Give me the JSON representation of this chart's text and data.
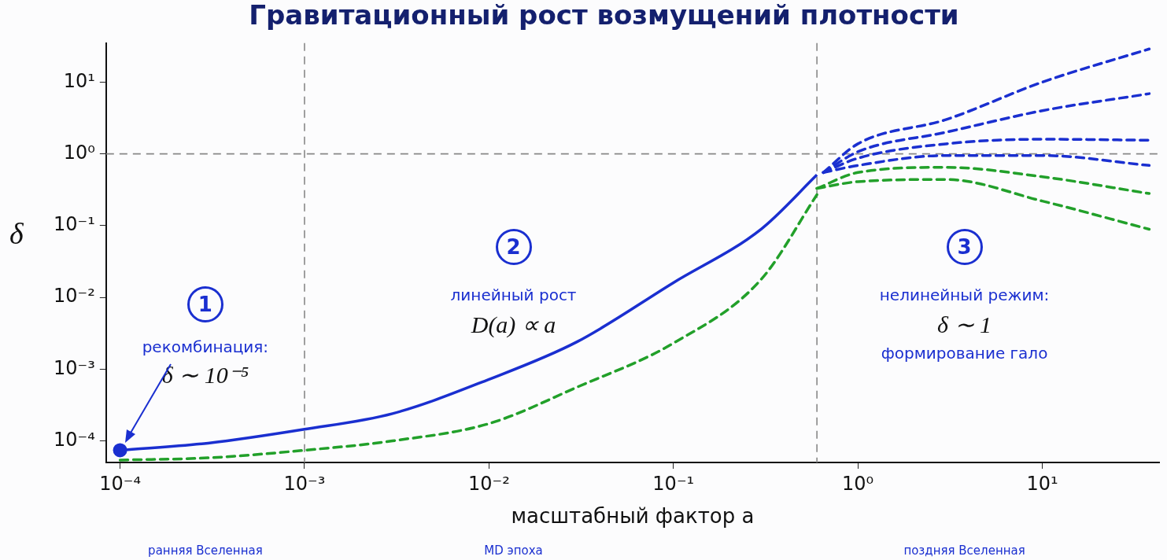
{
  "chart_data": {
    "type": "line",
    "title": "Гравитационный рост возмущений плотности",
    "xlabel": "масштабный фактор a",
    "ylabel": "δ",
    "log": "xy",
    "grid": false,
    "legend": false,
    "marker": "none",
    "xlim": [
      8.4e-05,
      43
    ],
    "ylim": [
      5e-05,
      35
    ],
    "xticks": [
      {
        "value": 0.0001,
        "label": "10⁻⁴"
      },
      {
        "value": 0.001,
        "label": "10⁻³"
      },
      {
        "value": 0.01,
        "label": "10⁻²"
      },
      {
        "value": 0.1,
        "label": "10⁻¹"
      },
      {
        "value": 1,
        "label": "10⁰"
      },
      {
        "value": 10,
        "label": "10¹"
      }
    ],
    "yticks": [
      {
        "value": 0.0001,
        "label": "10⁻⁴"
      },
      {
        "value": 0.001,
        "label": "10⁻³"
      },
      {
        "value": 0.01,
        "label": "10⁻²"
      },
      {
        "value": 0.1,
        "label": "10⁻¹"
      },
      {
        "value": 1,
        "label": "10⁰"
      },
      {
        "value": 10,
        "label": "10¹"
      }
    ],
    "series": [
      {
        "color": "#1a2fd0",
        "line_style": "solid",
        "x": [
          0.0001,
          0.0003,
          0.001,
          0.003,
          0.01,
          0.03,
          0.1,
          0.3,
          0.6
        ],
        "values": [
          7.4e-05,
          9.3e-05,
          0.000145,
          0.00024,
          0.00072,
          0.0024,
          0.016,
          0.09,
          0.51
        ]
      },
      {
        "color": "#22a02a",
        "line_style": "dashed",
        "x": [
          0.0001,
          0.0003,
          0.001,
          0.003,
          0.01,
          0.03,
          0.1,
          0.3,
          0.6
        ],
        "values": [
          5.4e-05,
          5.8e-05,
          7.4e-05,
          0.0001,
          0.000174,
          0.00056,
          0.0023,
          0.018,
          0.27
        ]
      },
      {
        "color": "#1a2fd0",
        "line_style": "dashed",
        "x": [
          0.65,
          1,
          3,
          10,
          38
        ],
        "values": [
          0.55,
          1.38,
          3,
          10,
          29
        ]
      },
      {
        "color": "#1a2fd0",
        "line_style": "dashed",
        "x": [
          0.65,
          1,
          3,
          10,
          38
        ],
        "values": [
          0.55,
          1.07,
          2,
          4,
          6.9
        ]
      },
      {
        "color": "#1a2fd0",
        "line_style": "dashed",
        "x": [
          0.65,
          1,
          3,
          10,
          38
        ],
        "values": [
          0.55,
          0.87,
          1.38,
          1.6,
          1.55
        ]
      },
      {
        "color": "#1a2fd0",
        "line_style": "dashed",
        "x": [
          0.65,
          1,
          3,
          10,
          38
        ],
        "values": [
          0.55,
          0.69,
          0.95,
          0.95,
          0.69
        ]
      },
      {
        "color": "#22a02a",
        "line_style": "dashed",
        "x": [
          0.6,
          1,
          3,
          10,
          38
        ],
        "values": [
          0.33,
          0.55,
          0.65,
          0.48,
          0.28
        ]
      },
      {
        "color": "#22a02a",
        "line_style": "dashed",
        "x": [
          0.6,
          1,
          3,
          10,
          38
        ],
        "values": [
          0.33,
          0.41,
          0.44,
          0.22,
          0.089
        ]
      },
      {
        "type": "scatter",
        "marker": "circle",
        "color": "#1a2fd0",
        "x": [
          0.0001
        ],
        "values": [
          7.4e-05
        ]
      }
    ],
    "ref_lines": [
      {
        "axis": "x",
        "value": 0.001,
        "color": "#888888",
        "line_style": "dashed"
      },
      {
        "axis": "x",
        "value": 0.6,
        "color": "#888888",
        "line_style": "dashed"
      },
      {
        "axis": "y",
        "value": 1,
        "color": "#888888",
        "line_style": "dashed"
      }
    ],
    "annotations": [
      "1",
      "рекомбинация:",
      "δ ∼ 10⁻⁵",
      "2",
      "линейный рост",
      "D(a) ∝ a",
      "3",
      "нелинейный режим:",
      "δ ∼ 1",
      "формирование гало",
      "ранняя Вселенная",
      "MD эпоха",
      "поздняя Вселенная"
    ]
  }
}
